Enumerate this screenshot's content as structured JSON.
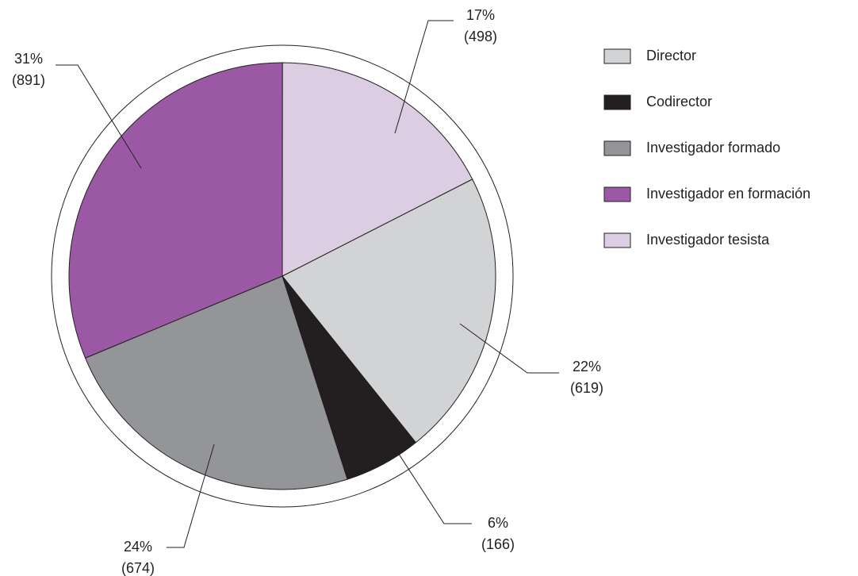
{
  "chart_data": {
    "type": "pie",
    "categories": [
      "Director",
      "Codirector",
      "Investigador formado",
      "Investigador en formación",
      "Investigador tesista"
    ],
    "values": [
      619,
      166,
      674,
      891,
      498
    ],
    "value_labels": [
      "(619)",
      "(166)",
      "(674)",
      "(891)",
      "(498)"
    ],
    "percents": [
      22,
      6,
      24,
      31,
      17
    ],
    "percent_labels": [
      "22%",
      "6%",
      "24%",
      "31%",
      "17%"
    ],
    "colors": [
      "#d2d3d5",
      "#231f20",
      "#939598",
      "#9b59a5",
      "#dccde3"
    ],
    "legend": "right"
  }
}
